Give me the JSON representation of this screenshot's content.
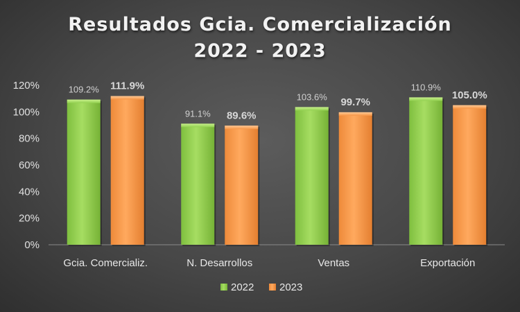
{
  "chart_data": {
    "type": "bar",
    "title": [
      "Resultados Gcia. Comercialización",
      "2022 - 2023"
    ],
    "categories": [
      "Gcia. Comercializ.",
      "N. Desarrollos",
      "Ventas",
      "Exportación"
    ],
    "series": [
      {
        "name": "2022",
        "values": [
          109.2,
          91.1,
          103.6,
          110.9
        ],
        "labels": [
          "109.2%",
          "91.1%",
          "103.6%",
          "110.9%"
        ],
        "color": "#92d050"
      },
      {
        "name": "2023",
        "values": [
          111.9,
          89.6,
          99.7,
          105.0
        ],
        "labels": [
          "111.9%",
          "89.6%",
          "99.7%",
          "105.0%"
        ],
        "color": "#f79646"
      }
    ],
    "y_ticks": [
      "0%",
      "20%",
      "40%",
      "60%",
      "80%",
      "100%",
      "120%"
    ],
    "ylim": [
      0,
      120
    ],
    "grid": false,
    "legend": "bottom"
  }
}
